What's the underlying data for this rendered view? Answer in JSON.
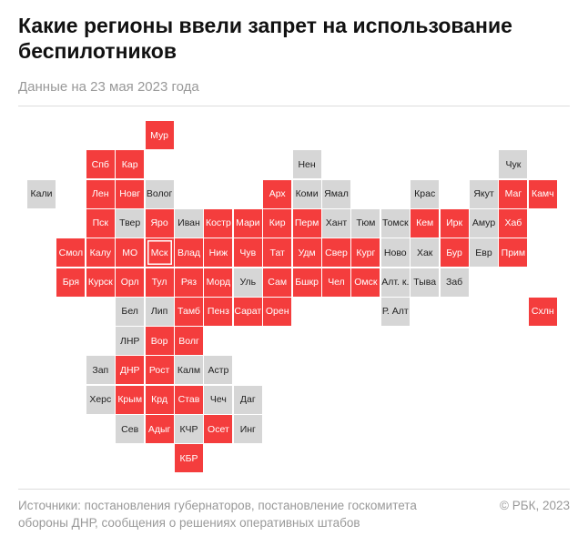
{
  "header": {
    "title": "Какие регионы ввели запрет на использование беспилотников",
    "subtitle": "Данные на 23 мая 2023 года"
  },
  "colors": {
    "banned": "#f43d3d",
    "other": "#d6d6d6"
  },
  "map": {
    "rows": [
      [
        null,
        null,
        null,
        null,
        {
          "label": "Мур",
          "banned": true
        }
      ],
      [
        null,
        null,
        {
          "label": "Спб",
          "banned": true
        },
        {
          "label": "Кар",
          "banned": true
        },
        null,
        null,
        null,
        null,
        null,
        {
          "label": "Нен",
          "banned": false
        },
        null,
        null,
        null,
        null,
        null,
        null,
        {
          "label": "Чук",
          "banned": false
        }
      ],
      [
        {
          "label": "Кали",
          "banned": false
        },
        null,
        {
          "label": "Лен",
          "banned": true
        },
        {
          "label": "Новг",
          "banned": true
        },
        {
          "label": "Волог",
          "banned": false
        },
        null,
        null,
        null,
        {
          "label": "Арх",
          "banned": true
        },
        {
          "label": "Коми",
          "banned": false
        },
        {
          "label": "Ямал",
          "banned": false
        },
        null,
        null,
        {
          "label": "Крас",
          "banned": false
        },
        null,
        {
          "label": "Якут",
          "banned": false
        },
        {
          "label": "Маг",
          "banned": true
        },
        {
          "label": "Камч",
          "banned": true
        }
      ],
      [
        null,
        null,
        {
          "label": "Пск",
          "banned": true
        },
        {
          "label": "Твер",
          "banned": false
        },
        {
          "label": "Яро",
          "banned": true
        },
        {
          "label": "Иван",
          "banned": false
        },
        {
          "label": "Костр",
          "banned": true
        },
        {
          "label": "Мари",
          "banned": true
        },
        {
          "label": "Кир",
          "banned": true
        },
        {
          "label": "Перм",
          "banned": true
        },
        {
          "label": "Хант",
          "banned": false
        },
        {
          "label": "Тюм",
          "banned": false
        },
        {
          "label": "Томск",
          "banned": false
        },
        {
          "label": "Кем",
          "banned": true
        },
        {
          "label": "Ирк",
          "banned": true
        },
        {
          "label": "Амур",
          "banned": false
        },
        {
          "label": "Хаб",
          "banned": true
        }
      ],
      [
        null,
        {
          "label": "Смол",
          "banned": true
        },
        {
          "label": "Калу",
          "banned": true
        },
        {
          "label": "МО",
          "banned": true
        },
        {
          "label": "Мск",
          "banned": true,
          "highlight": true
        },
        {
          "label": "Влад",
          "banned": true
        },
        {
          "label": "Ниж",
          "banned": true
        },
        {
          "label": "Чув",
          "banned": true
        },
        {
          "label": "Тат",
          "banned": true
        },
        {
          "label": "Удм",
          "banned": true
        },
        {
          "label": "Свер",
          "banned": true
        },
        {
          "label": "Кург",
          "banned": true
        },
        {
          "label": "Ново",
          "banned": false
        },
        {
          "label": "Хак",
          "banned": false
        },
        {
          "label": "Бур",
          "banned": true
        },
        {
          "label": "Евр",
          "banned": false
        },
        {
          "label": "Прим",
          "banned": true
        }
      ],
      [
        null,
        {
          "label": "Бря",
          "banned": true
        },
        {
          "label": "Курск",
          "banned": true
        },
        {
          "label": "Орл",
          "banned": true
        },
        {
          "label": "Тул",
          "banned": true
        },
        {
          "label": "Ряз",
          "banned": true
        },
        {
          "label": "Морд",
          "banned": true
        },
        {
          "label": "Уль",
          "banned": false
        },
        {
          "label": "Сам",
          "banned": true
        },
        {
          "label": "Бшкр",
          "banned": true
        },
        {
          "label": "Чел",
          "banned": true
        },
        {
          "label": "Омск",
          "banned": true
        },
        {
          "label": "Алт. к.",
          "banned": false
        },
        {
          "label": "Тыва",
          "banned": false
        },
        {
          "label": "Заб",
          "banned": false
        }
      ],
      [
        null,
        null,
        null,
        {
          "label": "Бел",
          "banned": false
        },
        {
          "label": "Лип",
          "banned": false
        },
        {
          "label": "Тамб",
          "banned": true
        },
        {
          "label": "Пенз",
          "banned": true
        },
        {
          "label": "Сарат",
          "banned": true
        },
        {
          "label": "Орен",
          "banned": true
        },
        null,
        null,
        null,
        {
          "label": "Р. Алт",
          "banned": false
        },
        null,
        null,
        null,
        null,
        {
          "label": "Схлн",
          "banned": true
        }
      ],
      [
        null,
        null,
        null,
        {
          "label": "ЛНР",
          "banned": false
        },
        {
          "label": "Вор",
          "banned": true
        },
        {
          "label": "Волг",
          "banned": true
        }
      ],
      [
        null,
        null,
        {
          "label": "Зап",
          "banned": false
        },
        {
          "label": "ДНР",
          "banned": true
        },
        {
          "label": "Рост",
          "banned": true
        },
        {
          "label": "Калм",
          "banned": false
        },
        {
          "label": "Астр",
          "banned": false
        }
      ],
      [
        null,
        null,
        {
          "label": "Херс",
          "banned": false
        },
        {
          "label": "Крым",
          "banned": true
        },
        {
          "label": "Крд",
          "banned": true
        },
        {
          "label": "Став",
          "banned": true
        },
        {
          "label": "Чеч",
          "banned": false
        },
        {
          "label": "Даг",
          "banned": false
        }
      ],
      [
        null,
        null,
        null,
        {
          "label": "Сев",
          "banned": false
        },
        {
          "label": "Адыг",
          "banned": true
        },
        {
          "label": "КЧР",
          "banned": false
        },
        {
          "label": "Осет",
          "banned": true
        },
        {
          "label": "Инг",
          "banned": false
        }
      ],
      [
        null,
        null,
        null,
        null,
        null,
        {
          "label": "КБР",
          "banned": true
        }
      ]
    ]
  },
  "footer": {
    "sources": [
      "Источники: постановления губернаторов, постановление госкомитета",
      "обороны ДНР, сообщения о решениях оперативных штабов"
    ],
    "copyright": "© РБК, 2023"
  }
}
